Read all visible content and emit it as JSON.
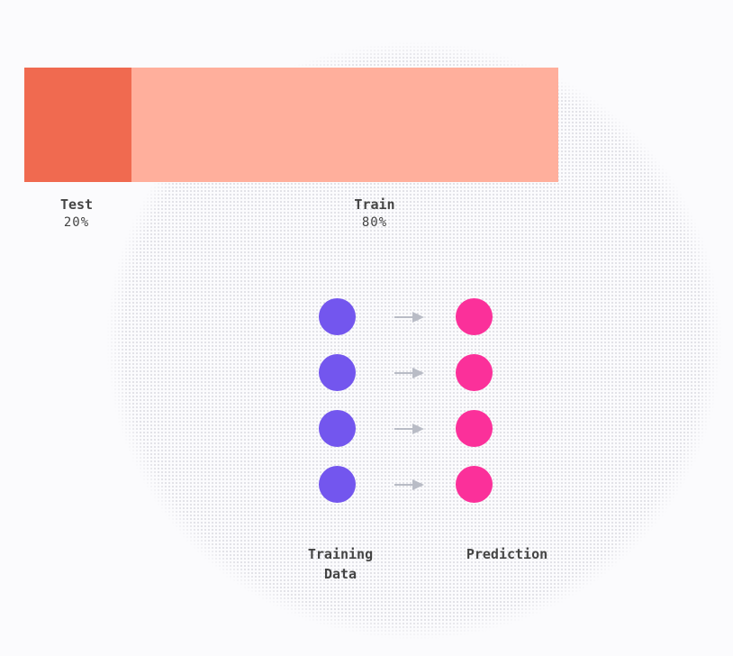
{
  "split": {
    "test": {
      "name": "Test",
      "percent_label": "20%",
      "share": 20
    },
    "train": {
      "name": "Train",
      "percent_label": "80%",
      "share": 80
    }
  },
  "flow": {
    "rows": 4,
    "input_caption": "Training\nData",
    "output_caption": "Prediction"
  },
  "colors": {
    "background": "#fbfbfd",
    "test": "#f06a50",
    "train": "#ffaf9c",
    "input_dot": "#7356ee",
    "output_dot": "#fb309a",
    "arrow": "#b9bcc6"
  }
}
